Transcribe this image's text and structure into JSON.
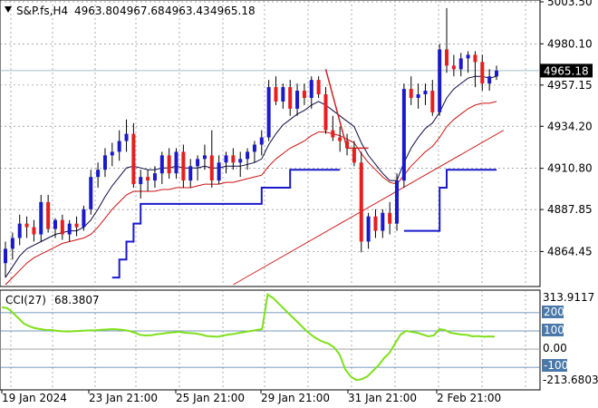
{
  "header": {
    "arrow_icon": "triangle-down-icon",
    "symbol": "S&P.fs,H4",
    "open": "4963.80",
    "high": "4967.68",
    "low": "4963.43",
    "close": "4965.18"
  },
  "current_price_label": "4965.18",
  "indicator": {
    "name": "CCI(27)",
    "value": "68.3807",
    "max_label": "313.9117",
    "min_label": "-213.6803",
    "levels": [
      "200",
      "100",
      "0.00",
      "-100"
    ]
  },
  "colors": {
    "bull_candle": "#1a1acc",
    "bear_candle": "#e61e1e",
    "grid": "#8a8a8a",
    "price_line": "#8aa8b8",
    "cci_line": "#7fe01a",
    "level_box": "#4a78a8",
    "trendline": "#cc2222",
    "ma_fast": "#0a0a44",
    "ma_slow": "#cc1111",
    "stop_line": "#1a1acc"
  },
  "chart_data": [
    {
      "type": "candlestick",
      "title": "S&P.fs,H4",
      "y_ticks": [
        5003.5,
        4980.1,
        4957.15,
        4934.2,
        4910.8,
        4887.85,
        4864.45
      ],
      "ylim": [
        4846.0,
        5003.5
      ],
      "x_ticks": [
        "19 Jan 2024",
        "23 Jan 21:00",
        "25 Jan 21:00",
        "29 Jan 21:00",
        "31 Jan 21:00",
        "2 Feb 21:00"
      ],
      "last_price": 4965.18,
      "ohlc": [
        [
          4858,
          4870,
          4850,
          4866
        ],
        [
          4866,
          4875,
          4860,
          4872
        ],
        [
          4872,
          4885,
          4868,
          4880
        ],
        [
          4880,
          4884,
          4872,
          4878
        ],
        [
          4878,
          4882,
          4870,
          4874
        ],
        [
          4874,
          4896,
          4870,
          4892
        ],
        [
          4892,
          4896,
          4875,
          4877
        ],
        [
          4877,
          4883,
          4872,
          4882
        ],
        [
          4882,
          4885,
          4871,
          4874
        ],
        [
          4874,
          4882,
          4870,
          4880
        ],
        [
          4880,
          4884,
          4873,
          4878
        ],
        [
          4878,
          4890,
          4876,
          4888
        ],
        [
          4888,
          4910,
          4885,
          4906
        ],
        [
          4906,
          4914,
          4900,
          4910
        ],
        [
          4910,
          4922,
          4906,
          4918
        ],
        [
          4918,
          4925,
          4912,
          4920
        ],
        [
          4920,
          4932,
          4915,
          4926
        ],
        [
          4926,
          4938,
          4920,
          4930
        ],
        [
          4930,
          4936,
          4900,
          4902
        ],
        [
          4902,
          4910,
          4894,
          4906
        ],
        [
          4906,
          4910,
          4898,
          4904
        ],
        [
          4904,
          4912,
          4900,
          4908
        ],
        [
          4908,
          4920,
          4902,
          4918
        ],
        [
          4918,
          4922,
          4905,
          4908
        ],
        [
          4908,
          4922,
          4905,
          4920
        ],
        [
          4920,
          4924,
          4900,
          4904
        ],
        [
          4904,
          4916,
          4900,
          4912
        ],
        [
          4912,
          4918,
          4904,
          4916
        ],
        [
          4916,
          4924,
          4910,
          4918
        ],
        [
          4918,
          4932,
          4900,
          4904
        ],
        [
          4904,
          4918,
          4902,
          4914
        ],
        [
          4914,
          4920,
          4908,
          4918
        ],
        [
          4918,
          4922,
          4910,
          4914
        ],
        [
          4914,
          4920,
          4906,
          4916
        ],
        [
          4916,
          4922,
          4910,
          4920
        ],
        [
          4920,
          4926,
          4914,
          4924
        ],
        [
          4924,
          4932,
          4918,
          4928
        ],
        [
          4928,
          4960,
          4926,
          4956
        ],
        [
          4956,
          4962,
          4946,
          4948
        ],
        [
          4948,
          4958,
          4944,
          4956
        ],
        [
          4956,
          4960,
          4940,
          4944
        ],
        [
          4944,
          4958,
          4940,
          4954
        ],
        [
          4954,
          4958,
          4946,
          4950
        ],
        [
          4950,
          4962,
          4944,
          4960
        ],
        [
          4960,
          4962,
          4950,
          4952
        ],
        [
          4952,
          4956,
          4930,
          4932
        ],
        [
          4932,
          4940,
          4926,
          4928
        ],
        [
          4928,
          4934,
          4920,
          4926
        ],
        [
          4926,
          4930,
          4918,
          4922
        ],
        [
          4922,
          4926,
          4912,
          4914
        ],
        [
          4914,
          4920,
          4864,
          4870
        ],
        [
          4870,
          4886,
          4866,
          4884
        ],
        [
          4884,
          4888,
          4872,
          4876
        ],
        [
          4876,
          4888,
          4872,
          4886
        ],
        [
          4886,
          4892,
          4874,
          4880
        ],
        [
          4880,
          4908,
          4876,
          4904
        ],
        [
          4904,
          4958,
          4900,
          4955
        ],
        [
          4955,
          4962,
          4946,
          4950
        ],
        [
          4950,
          4958,
          4944,
          4952
        ],
        [
          4952,
          4958,
          4946,
          4954
        ],
        [
          4954,
          4960,
          4940,
          4942
        ],
        [
          4942,
          4980,
          4940,
          4977
        ],
        [
          4977,
          5000,
          4964,
          4968
        ],
        [
          4968,
          4974,
          4962,
          4966
        ],
        [
          4966,
          4975,
          4962,
          4972
        ],
        [
          4972,
          4976,
          4964,
          4974
        ],
        [
          4974,
          4976,
          4956,
          4970
        ],
        [
          4970,
          4974,
          4954,
          4958
        ],
        [
          4958,
          4966,
          4954,
          4962
        ],
        [
          4962,
          4968,
          4960,
          4965.18
        ]
      ],
      "series": [
        {
          "name": "",
          "values": [
            4850,
            4856,
            4862,
            4866,
            4868,
            4870,
            4872,
            4874,
            4875,
            4876,
            4876,
            4878,
            4882,
            4888,
            4895,
            4901,
            4906,
            4911,
            4912,
            4911,
            4910,
            4910,
            4911,
            4911,
            4912,
            4911,
            4911,
            4911,
            4912,
            4911,
            4911,
            4912,
            4912,
            4912,
            4913,
            4914,
            4916,
            4924,
            4930,
            4935,
            4938,
            4941,
            4943,
            4946,
            4948,
            4946,
            4943,
            4940,
            4937,
            4934,
            4925,
            4918,
            4913,
            4908,
            4904,
            4904,
            4914,
            4922,
            4928,
            4933,
            4936,
            4942,
            4950,
            4955,
            4958,
            4961,
            4962,
            4962,
            4961,
            4962
          ]
        },
        {
          "name": "",
          "values": [
            4846,
            4850,
            4854,
            4858,
            4861,
            4863,
            4865,
            4867,
            4869,
            4870,
            4871,
            4872,
            4874,
            4878,
            4883,
            4888,
            4892,
            4896,
            4898,
            4898,
            4898,
            4898,
            4899,
            4899,
            4900,
            4900,
            4900,
            4901,
            4902,
            4902,
            4902,
            4903,
            4903,
            4904,
            4905,
            4906,
            4907,
            4912,
            4916,
            4919,
            4922,
            4924,
            4926,
            4929,
            4931,
            4931,
            4930,
            4929,
            4927,
            4925,
            4919,
            4914,
            4910,
            4906,
            4903,
            4902,
            4907,
            4912,
            4916,
            4920,
            4923,
            4928,
            4934,
            4938,
            4941,
            4944,
            4946,
            4947,
            4947,
            4948
          ]
        },
        {
          "name": "",
          "values": [
            null,
            null,
            null,
            null,
            null,
            null,
            null,
            null,
            null,
            null,
            null,
            null,
            null,
            null,
            null,
            4850,
            4860,
            4870,
            4880,
            4891,
            4891,
            4891,
            4891,
            4891,
            4891,
            4891,
            4891,
            4891,
            4891,
            4891,
            4891,
            4891,
            4891,
            4891,
            4891,
            4891,
            4900,
            4900,
            4900,
            4900,
            4910,
            4910,
            4910,
            4910,
            4910,
            4910,
            4910,
            4910,
            null,
            null,
            null,
            null,
            null,
            null,
            null,
            null,
            4876,
            4876,
            4876,
            4876,
            4876,
            4900,
            4910,
            4910,
            4910,
            4910,
            4910,
            4910,
            4910,
            4910
          ]
        }
      ],
      "trendline": {
        "from": [
          32,
          4846
        ],
        "to": [
          70,
          4932
        ]
      },
      "resistance": {
        "from": [
          45,
          4952
        ],
        "to": [
          50,
          4922
        ]
      }
    },
    {
      "type": "line",
      "title": "CCI(27)",
      "ylim": [
        -213.6803,
        313.9117
      ],
      "levels": [
        200,
        100,
        0,
        -100
      ],
      "series": [
        {
          "name": "CCI(27)",
          "values": [
            230,
            225,
            200,
            170,
            140,
            125,
            115,
            110,
            105,
            105,
            100,
            98,
            97,
            99,
            100,
            102,
            103,
            104,
            106,
            108,
            110,
            108,
            105,
            100,
            90,
            78,
            75,
            76,
            82,
            85,
            90,
            92,
            95,
            90,
            88,
            86,
            80,
            72,
            70,
            68,
            75,
            80,
            84,
            90,
            95,
            100,
            105,
            110,
            300,
            280,
            250,
            220,
            190,
            160,
            130,
            100,
            75,
            55,
            40,
            30,
            10,
            -30,
            -110,
            -150,
            -170,
            -165,
            -150,
            -120,
            -90,
            -50,
            -20,
            30,
            80,
            100,
            95,
            90,
            80,
            70,
            75,
            110,
            105,
            90,
            85,
            80,
            78,
            70,
            72,
            68,
            70,
            68.3807
          ]
        }
      ]
    }
  ]
}
